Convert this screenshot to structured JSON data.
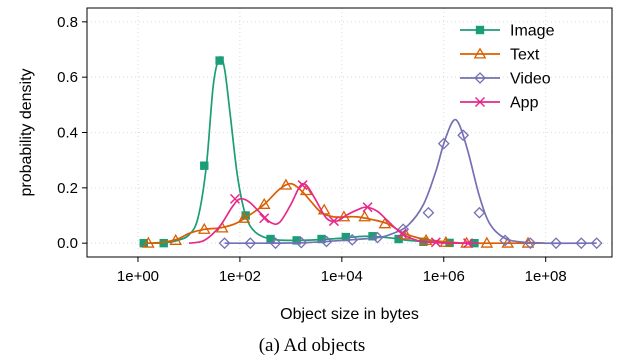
{
  "chart_data": {
    "type": "line",
    "caption": "(a) Ad objects",
    "xlabel": "Object size in bytes",
    "ylabel": "probability density",
    "x_scale": "log10",
    "xlim": [
      0.1,
      2000000000.0
    ],
    "ylim": [
      -0.05,
      0.85
    ],
    "x_ticks": [
      {
        "value": 1,
        "label": "1e+00"
      },
      {
        "value": 100,
        "label": "1e+02"
      },
      {
        "value": 10000,
        "label": "1e+04"
      },
      {
        "value": 1000000,
        "label": "1e+06"
      },
      {
        "value": 100000000,
        "label": "1e+08"
      }
    ],
    "y_ticks": [
      {
        "value": 0.0,
        "label": "0.0"
      },
      {
        "value": 0.2,
        "label": "0.2"
      },
      {
        "value": 0.4,
        "label": "0.4"
      },
      {
        "value": 0.6,
        "label": "0.6"
      },
      {
        "value": 0.8,
        "label": "0.8"
      }
    ],
    "grid": true,
    "legend_position": "top-right",
    "series": [
      {
        "name": "Image",
        "color": "#1b9e77",
        "marker": "square",
        "x": [
          1.3,
          2.0,
          3.5,
          6.0,
          10,
          15,
          22,
          30,
          40,
          50,
          65,
          90,
          130,
          200,
          400,
          1000,
          3000,
          10000,
          30000,
          100000,
          200000,
          500000,
          1000000,
          2000000,
          3000000
        ],
        "y": [
          0,
          0,
          0.002,
          0.01,
          0.03,
          0.09,
          0.28,
          0.57,
          0.67,
          0.63,
          0.46,
          0.24,
          0.1,
          0.04,
          0.015,
          0.01,
          0.012,
          0.018,
          0.025,
          0.018,
          0.01,
          0.005,
          0.002,
          0,
          0
        ],
        "markers_x": [
          1.3,
          3.2,
          20,
          40,
          130,
          400,
          1300,
          4000,
          12000,
          40000,
          130000,
          400000,
          1300000,
          4000000
        ],
        "markers_y": [
          0,
          0,
          0.28,
          0.66,
          0.1,
          0.015,
          0.01,
          0.015,
          0.022,
          0.025,
          0.015,
          0.005,
          0.001,
          0
        ]
      },
      {
        "name": "Text",
        "color": "#d95f02",
        "marker": "triangle",
        "x": [
          1.5,
          3,
          6,
          10,
          20,
          40,
          80,
          150,
          300,
          600,
          1000,
          1600,
          2500,
          4000,
          7000,
          12000,
          20000,
          40000,
          80000,
          150000,
          300000,
          600000,
          1200000,
          3000000,
          10000000,
          30000000,
          100000000
        ],
        "y": [
          0,
          0.003,
          0.015,
          0.035,
          0.05,
          0.055,
          0.07,
          0.1,
          0.14,
          0.195,
          0.215,
          0.19,
          0.15,
          0.11,
          0.095,
          0.095,
          0.095,
          0.085,
          0.07,
          0.04,
          0.02,
          0.01,
          0.004,
          0,
          0,
          0,
          0
        ],
        "markers_x": [
          1.6,
          5.5,
          20,
          45,
          120,
          300,
          800,
          2000,
          4500,
          11000,
          28000,
          70000,
          180000,
          450000,
          1100000,
          2800000,
          7000000,
          18000000,
          45000000
        ],
        "markers_y": [
          0,
          0.01,
          0.05,
          0.055,
          0.09,
          0.14,
          0.21,
          0.19,
          0.12,
          0.095,
          0.095,
          0.07,
          0.03,
          0.01,
          0.003,
          0,
          0,
          0,
          0
        ]
      },
      {
        "name": "Video",
        "color": "#7570b3",
        "marker": "diamond",
        "x": [
          50,
          300,
          2000,
          10000,
          50000,
          100000,
          200000,
          400000,
          700000,
          1000000,
          1500000,
          2000000,
          3000000,
          5000000,
          8000000,
          15000000,
          30000000,
          100000000,
          1000000000
        ],
        "y": [
          0,
          0,
          0.002,
          0.01,
          0.02,
          0.035,
          0.065,
          0.14,
          0.26,
          0.36,
          0.44,
          0.43,
          0.33,
          0.17,
          0.07,
          0.02,
          0.005,
          0,
          0
        ],
        "markers_x": [
          50,
          160,
          500,
          1600,
          5000,
          16000,
          50000,
          160000,
          500000,
          1000000,
          2400000,
          5000000,
          16000000,
          50000000,
          160000000,
          500000000,
          1000000000
        ],
        "markers_y": [
          0,
          0,
          0,
          0.002,
          0.006,
          0.012,
          0.02,
          0.05,
          0.11,
          0.36,
          0.39,
          0.11,
          0.01,
          0,
          0,
          0,
          0
        ]
      },
      {
        "name": "App",
        "color": "#e7298a",
        "marker": "x",
        "x": [
          10,
          20,
          40,
          70,
          100,
          150,
          250,
          400,
          600,
          1000,
          1500,
          2000,
          3000,
          5000,
          8000,
          12000,
          20000,
          30000,
          50000,
          80000,
          150000,
          300000,
          700000,
          2000000,
          5000000
        ],
        "y": [
          0,
          0.01,
          0.06,
          0.13,
          0.16,
          0.15,
          0.11,
          0.075,
          0.075,
          0.14,
          0.205,
          0.21,
          0.16,
          0.09,
          0.08,
          0.1,
          0.12,
          0.13,
          0.115,
          0.08,
          0.035,
          0.01,
          0.002,
          0,
          0
        ],
        "markers_x": [
          80,
          300,
          1700,
          7000,
          32000,
          150000,
          700000,
          3000000
        ],
        "markers_y": [
          0.16,
          0.09,
          0.21,
          0.08,
          0.13,
          0.035,
          0.003,
          0
        ]
      }
    ]
  }
}
